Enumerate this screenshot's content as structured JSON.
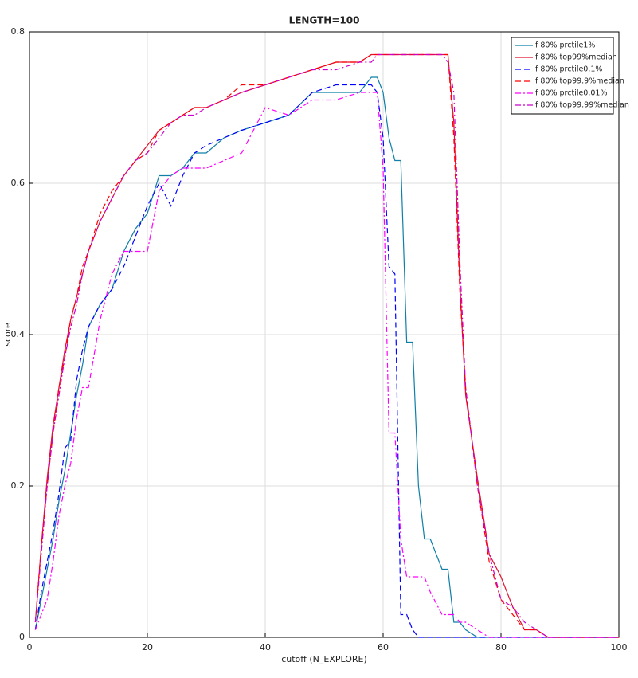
{
  "chart_data": {
    "type": "line",
    "title": "LENGTH=100",
    "xlabel": "cutoff (N_EXPLORE)",
    "ylabel": "score",
    "x": [
      1,
      2,
      3,
      4,
      5,
      6,
      7,
      8,
      9,
      10,
      12,
      14,
      16,
      18,
      20,
      22,
      24,
      26,
      28,
      30,
      33,
      36,
      40,
      44,
      48,
      52,
      56,
      58,
      59,
      60,
      61,
      62,
      63,
      64,
      65,
      66,
      67,
      68,
      70,
      71,
      72,
      73,
      74,
      76,
      78,
      80,
      82,
      84,
      86,
      88,
      90,
      100
    ],
    "series": [
      {
        "name": "f 80% prctile1%",
        "color": "#0f7fa8",
        "dash": "solid",
        "values": [
          0.01,
          0.05,
          0.09,
          0.13,
          0.18,
          0.22,
          0.27,
          0.32,
          0.36,
          0.41,
          0.44,
          0.46,
          0.51,
          0.54,
          0.56,
          0.61,
          0.61,
          0.62,
          0.64,
          0.64,
          0.66,
          0.67,
          0.68,
          0.69,
          0.72,
          0.72,
          0.72,
          0.74,
          0.74,
          0.72,
          0.66,
          0.63,
          0.63,
          0.39,
          0.39,
          0.2,
          0.13,
          0.13,
          0.09,
          0.09,
          0.02,
          0.02,
          0.01,
          0,
          0,
          0,
          0,
          0,
          0,
          0,
          0,
          0
        ]
      },
      {
        "name": "f 80% top99%median",
        "color": "#e0102f",
        "dash": "solid",
        "values": [
          0.02,
          0.12,
          0.21,
          0.28,
          0.33,
          0.38,
          0.42,
          0.45,
          0.48,
          0.51,
          0.55,
          0.58,
          0.61,
          0.63,
          0.65,
          0.67,
          0.68,
          0.69,
          0.7,
          0.7,
          0.71,
          0.72,
          0.73,
          0.74,
          0.75,
          0.76,
          0.76,
          0.77,
          0.77,
          0.77,
          0.77,
          0.77,
          0.77,
          0.77,
          0.77,
          0.77,
          0.77,
          0.77,
          0.77,
          0.77,
          0.68,
          0.47,
          0.32,
          0.21,
          0.11,
          0.08,
          0.04,
          0.01,
          0.01,
          0,
          0,
          0
        ]
      },
      {
        "name": "f 80% prctile0.1%",
        "color": "#0000ff",
        "dash": "dashed",
        "values": [
          0.01,
          0.06,
          0.1,
          0.14,
          0.19,
          0.25,
          0.26,
          0.34,
          0.38,
          0.41,
          0.44,
          0.46,
          0.49,
          0.53,
          0.57,
          0.6,
          0.57,
          0.61,
          0.64,
          0.65,
          0.66,
          0.67,
          0.68,
          0.69,
          0.72,
          0.73,
          0.73,
          0.73,
          0.72,
          0.66,
          0.49,
          0.48,
          0.03,
          0.03,
          0.01,
          0,
          0,
          0,
          0,
          0,
          0,
          0,
          0,
          0,
          0,
          0,
          0,
          0,
          0,
          0,
          0,
          0
        ]
      },
      {
        "name": "f 80% top99.9%median",
        "color": "#ff0000",
        "dash": "dashed",
        "values": [
          0.02,
          0.12,
          0.2,
          0.27,
          0.33,
          0.37,
          0.42,
          0.45,
          0.49,
          0.51,
          0.56,
          0.59,
          0.61,
          0.63,
          0.64,
          0.67,
          0.68,
          0.69,
          0.7,
          0.7,
          0.71,
          0.73,
          0.73,
          0.74,
          0.75,
          0.76,
          0.76,
          0.77,
          0.77,
          0.77,
          0.77,
          0.77,
          0.77,
          0.77,
          0.77,
          0.77,
          0.77,
          0.77,
          0.77,
          0.77,
          0.66,
          0.46,
          0.33,
          0.2,
          0.1,
          0.05,
          0.03,
          0.01,
          0.01,
          0,
          0,
          0
        ]
      },
      {
        "name": "f 80% prctile0.01%",
        "color": "#ff00ff",
        "dash": "dashdot",
        "values": [
          0.01,
          0.03,
          0.05,
          0.1,
          0.16,
          0.2,
          0.23,
          0.29,
          0.33,
          0.33,
          0.42,
          0.48,
          0.51,
          0.51,
          0.51,
          0.59,
          0.61,
          0.62,
          0.62,
          0.62,
          0.63,
          0.64,
          0.7,
          0.69,
          0.71,
          0.71,
          0.72,
          0.72,
          0.72,
          0.62,
          0.27,
          0.27,
          0.13,
          0.08,
          0.08,
          0.08,
          0.08,
          0.06,
          0.03,
          0.03,
          0.03,
          0.02,
          0.02,
          0.01,
          0,
          0,
          0,
          0,
          0,
          0,
          0,
          0
        ]
      },
      {
        "name": "f 80% top99.99%median",
        "color": "#cc00cc",
        "dash": "dashdot",
        "values": [
          0.02,
          0.11,
          0.2,
          0.27,
          0.32,
          0.37,
          0.41,
          0.44,
          0.48,
          0.51,
          0.55,
          0.58,
          0.61,
          0.63,
          0.64,
          0.66,
          0.68,
          0.69,
          0.69,
          0.7,
          0.71,
          0.72,
          0.73,
          0.74,
          0.75,
          0.75,
          0.76,
          0.76,
          0.77,
          0.77,
          0.77,
          0.77,
          0.77,
          0.77,
          0.77,
          0.77,
          0.77,
          0.77,
          0.77,
          0.76,
          0.72,
          0.5,
          0.33,
          0.2,
          0.11,
          0.05,
          0.04,
          0.02,
          0.01,
          0,
          0,
          0
        ]
      }
    ],
    "xlim": [
      0,
      100
    ],
    "xticks": [
      0,
      20,
      40,
      60,
      80,
      100
    ],
    "ylim": [
      0,
      0.8
    ],
    "yticks": [
      0,
      0.2,
      0.4,
      0.6,
      0.8
    ],
    "grid": true,
    "legend": "top-right"
  }
}
